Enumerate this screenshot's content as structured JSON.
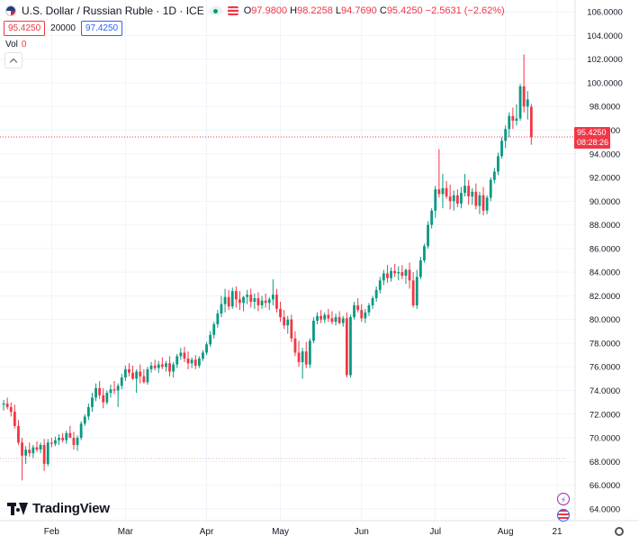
{
  "header": {
    "title": "U.S. Dollar / Russian Ruble · 1D · ICE",
    "ohlc": {
      "o_label": "O",
      "o": "97.9800",
      "h_label": "H",
      "h": "98.2258",
      "l_label": "L",
      "l": "94.7690",
      "c_label": "C",
      "c": "95.4250",
      "change": "−2.5631 (−2.62%)"
    },
    "sell_price": "95.4250",
    "quantity": "20000",
    "buy_price": "97.4250",
    "vol_label": "Vol",
    "vol_value": "0"
  },
  "price_tag": {
    "price": "95.4250",
    "countdown": "08:28:26"
  },
  "brand": "TradingView",
  "colors": {
    "up": "#089981",
    "down": "#f23645",
    "grid": "#f0f3fa",
    "axis_text": "#131722"
  },
  "chart_data": {
    "type": "candlestick",
    "title": "U.S. Dollar / Russian Ruble",
    "y_axis": {
      "min": 63.0,
      "max": 107.0,
      "ticks": [
        "64.0000",
        "66.0000",
        "68.0000",
        "70.0000",
        "72.0000",
        "74.0000",
        "76.0000",
        "78.0000",
        "80.0000",
        "82.0000",
        "84.0000",
        "86.0000",
        "88.0000",
        "90.0000",
        "92.0000",
        "94.0000",
        "96.0000",
        "98.0000",
        "100.0000",
        "102.0000",
        "104.0000",
        "106.0000"
      ]
    },
    "x_axis": {
      "labels": [
        {
          "label": "Feb",
          "index": 13
        },
        {
          "label": "Mar",
          "index": 33
        },
        {
          "label": "Apr",
          "index": 55
        },
        {
          "label": "May",
          "index": 75
        },
        {
          "label": "Jun",
          "index": 97
        },
        {
          "label": "Jul",
          "index": 117
        },
        {
          "label": "Aug",
          "index": 136
        },
        {
          "label": "21",
          "index": 150
        }
      ],
      "total_slots": 152
    },
    "current_price": 95.425,
    "reference_line": 68.25,
    "candles": [
      [
        72.8,
        73.2,
        72.3,
        72.9
      ],
      [
        72.9,
        73.4,
        72.4,
        72.6
      ],
      [
        72.6,
        73.0,
        71.8,
        72.2
      ],
      [
        72.2,
        72.8,
        70.8,
        71.0
      ],
      [
        71.0,
        71.5,
        69.4,
        69.6
      ],
      [
        69.6,
        70.0,
        66.4,
        68.5
      ],
      [
        68.5,
        69.3,
        67.8,
        69.0
      ],
      [
        69.0,
        69.6,
        68.4,
        68.7
      ],
      [
        68.7,
        69.4,
        68.3,
        69.2
      ],
      [
        69.2,
        69.7,
        68.8,
        69.0
      ],
      [
        69.0,
        69.6,
        68.7,
        69.4
      ],
      [
        69.4,
        69.9,
        67.2,
        67.8
      ],
      [
        67.8,
        69.9,
        67.6,
        69.6
      ],
      [
        69.6,
        70.0,
        69.2,
        69.5
      ],
      [
        69.5,
        70.1,
        69.3,
        69.8
      ],
      [
        69.8,
        70.3,
        69.4,
        70.0
      ],
      [
        70.0,
        70.4,
        69.6,
        69.8
      ],
      [
        69.8,
        70.6,
        69.5,
        70.4
      ],
      [
        70.4,
        71.0,
        70.1,
        70.0
      ],
      [
        70.0,
        70.5,
        69.0,
        69.4
      ],
      [
        69.4,
        70.2,
        68.9,
        70.0
      ],
      [
        70.0,
        71.4,
        69.8,
        71.2
      ],
      [
        71.2,
        72.0,
        71.0,
        71.8
      ],
      [
        71.8,
        72.9,
        71.5,
        72.6
      ],
      [
        72.6,
        73.8,
        72.2,
        73.4
      ],
      [
        73.4,
        74.6,
        73.1,
        74.2
      ],
      [
        74.2,
        74.8,
        73.3,
        73.6
      ],
      [
        73.6,
        74.2,
        72.5,
        73.0
      ],
      [
        73.0,
        74.0,
        72.8,
        73.8
      ],
      [
        73.8,
        74.5,
        73.4,
        74.1
      ],
      [
        74.1,
        74.8,
        73.7,
        74.0
      ],
      [
        74.0,
        74.6,
        72.6,
        74.4
      ],
      [
        74.4,
        75.4,
        74.1,
        75.1
      ],
      [
        75.1,
        76.1,
        74.8,
        75.8
      ],
      [
        75.8,
        76.3,
        75.2,
        75.5
      ],
      [
        75.5,
        76.1,
        74.9,
        75.0
      ],
      [
        75.0,
        75.8,
        73.8,
        75.6
      ],
      [
        75.6,
        76.2,
        74.6,
        75.2
      ],
      [
        75.2,
        75.8,
        74.6,
        74.7
      ],
      [
        74.7,
        76.0,
        74.5,
        75.8
      ],
      [
        75.8,
        76.4,
        75.5,
        76.1
      ],
      [
        76.1,
        76.6,
        75.7,
        75.9
      ],
      [
        75.9,
        76.5,
        75.5,
        76.2
      ],
      [
        76.2,
        76.8,
        75.8,
        76.0
      ],
      [
        76.0,
        76.5,
        75.6,
        76.3
      ],
      [
        76.3,
        76.9,
        75.2,
        75.6
      ],
      [
        75.6,
        76.4,
        75.1,
        76.2
      ],
      [
        76.2,
        77.1,
        75.9,
        76.9
      ],
      [
        76.9,
        77.6,
        76.6,
        77.2
      ],
      [
        77.2,
        77.7,
        76.4,
        76.7
      ],
      [
        76.7,
        77.3,
        75.8,
        76.3
      ],
      [
        76.3,
        76.8,
        75.9,
        76.6
      ],
      [
        76.6,
        77.0,
        75.8,
        76.1
      ],
      [
        76.1,
        76.9,
        75.9,
        76.7
      ],
      [
        76.7,
        77.4,
        76.5,
        77.2
      ],
      [
        77.2,
        78.1,
        77.0,
        77.9
      ],
      [
        77.9,
        79.0,
        77.7,
        78.7
      ],
      [
        78.7,
        79.8,
        78.4,
        79.6
      ],
      [
        79.6,
        80.8,
        79.3,
        80.5
      ],
      [
        80.5,
        82.0,
        80.2,
        81.3
      ],
      [
        81.3,
        82.6,
        80.6,
        81.9
      ],
      [
        81.9,
        82.5,
        80.8,
        81.1
      ],
      [
        81.1,
        82.7,
        80.9,
        82.4
      ],
      [
        82.4,
        82.8,
        81.0,
        81.7
      ],
      [
        81.7,
        82.4,
        80.8,
        81.4
      ],
      [
        81.4,
        82.0,
        80.7,
        81.9
      ],
      [
        81.9,
        82.5,
        81.3,
        82.1
      ],
      [
        82.1,
        82.6,
        81.0,
        81.5
      ],
      [
        81.5,
        82.2,
        80.9,
        81.8
      ],
      [
        81.8,
        82.3,
        80.7,
        81.2
      ],
      [
        81.2,
        82.0,
        80.9,
        81.6
      ],
      [
        81.6,
        82.2,
        81.0,
        81.4
      ],
      [
        81.4,
        81.9,
        80.8,
        81.7
      ],
      [
        81.7,
        83.4,
        81.2,
        82.1
      ],
      [
        82.1,
        82.6,
        80.6,
        80.9
      ],
      [
        80.9,
        81.5,
        79.8,
        80.2
      ],
      [
        80.2,
        80.8,
        79.2,
        79.5
      ],
      [
        79.5,
        80.3,
        78.8,
        80.0
      ],
      [
        80.0,
        80.4,
        78.1,
        78.4
      ],
      [
        78.4,
        79.0,
        76.9,
        77.2
      ],
      [
        77.2,
        78.2,
        76.0,
        76.4
      ],
      [
        76.4,
        77.6,
        75.0,
        77.3
      ],
      [
        77.3,
        78.1,
        75.9,
        76.2
      ],
      [
        76.2,
        78.4,
        75.9,
        78.2
      ],
      [
        78.2,
        80.2,
        78.0,
        79.9
      ],
      [
        79.9,
        80.6,
        79.6,
        80.3
      ],
      [
        80.3,
        80.8,
        79.7,
        80.0
      ],
      [
        80.0,
        80.6,
        79.7,
        80.4
      ],
      [
        80.4,
        80.9,
        79.8,
        80.1
      ],
      [
        80.1,
        80.7,
        79.6,
        79.8
      ],
      [
        79.8,
        80.5,
        79.5,
        80.2
      ],
      [
        80.2,
        80.7,
        79.6,
        79.7
      ],
      [
        79.7,
        80.3,
        79.4,
        80.1
      ],
      [
        80.1,
        80.6,
        75.1,
        75.3
      ],
      [
        75.3,
        80.4,
        75.1,
        80.2
      ],
      [
        80.2,
        81.5,
        80.0,
        81.2
      ],
      [
        81.2,
        81.8,
        80.6,
        80.8
      ],
      [
        80.8,
        81.3,
        79.8,
        80.1
      ],
      [
        80.1,
        80.9,
        79.7,
        80.6
      ],
      [
        80.6,
        81.4,
        80.3,
        81.2
      ],
      [
        81.2,
        82.0,
        80.9,
        81.8
      ],
      [
        81.8,
        82.8,
        81.5,
        82.5
      ],
      [
        82.5,
        83.6,
        82.2,
        83.3
      ],
      [
        83.3,
        84.2,
        82.9,
        83.9
      ],
      [
        83.9,
        84.6,
        83.1,
        83.5
      ],
      [
        83.5,
        84.4,
        83.2,
        84.1
      ],
      [
        84.1,
        84.7,
        83.6,
        83.9
      ],
      [
        83.9,
        84.5,
        83.3,
        84.0
      ],
      [
        84.0,
        84.6,
        83.4,
        83.7
      ],
      [
        83.7,
        84.3,
        83.0,
        84.2
      ],
      [
        84.2,
        84.8,
        82.6,
        83.3
      ],
      [
        83.3,
        84.0,
        81.0,
        81.2
      ],
      [
        81.2,
        84.2,
        80.9,
        83.6
      ],
      [
        83.6,
        85.3,
        83.4,
        85.0
      ],
      [
        85.0,
        86.4,
        84.8,
        86.2
      ],
      [
        86.2,
        88.3,
        86.0,
        88.0
      ],
      [
        88.0,
        89.4,
        87.7,
        89.2
      ],
      [
        89.2,
        91.3,
        88.6,
        91.0
      ],
      [
        91.0,
        94.4,
        90.3,
        90.6
      ],
      [
        90.6,
        92.3,
        89.4,
        91.1
      ],
      [
        91.1,
        91.7,
        90.2,
        90.4
      ],
      [
        90.4,
        91.4,
        89.3,
        90.0
      ],
      [
        90.0,
        90.9,
        89.2,
        90.5
      ],
      [
        90.5,
        91.0,
        89.5,
        89.8
      ],
      [
        89.8,
        91.2,
        89.4,
        90.7
      ],
      [
        90.7,
        92.3,
        90.4,
        91.3
      ],
      [
        91.3,
        91.8,
        89.7,
        90.4
      ],
      [
        90.4,
        91.1,
        89.7,
        90.8
      ],
      [
        90.8,
        91.5,
        89.3,
        89.6
      ],
      [
        89.6,
        90.8,
        88.9,
        90.5
      ],
      [
        90.5,
        91.2,
        88.8,
        89.2
      ],
      [
        89.2,
        90.5,
        88.9,
        90.3
      ],
      [
        90.3,
        92.0,
        90.0,
        91.8
      ],
      [
        91.8,
        92.8,
        91.5,
        92.5
      ],
      [
        92.5,
        94.1,
        92.2,
        93.8
      ],
      [
        93.8,
        95.4,
        93.6,
        95.1
      ],
      [
        95.1,
        96.4,
        94.5,
        96.1
      ],
      [
        96.1,
        97.5,
        95.4,
        97.2
      ],
      [
        97.2,
        97.9,
        96.1,
        96.8
      ],
      [
        96.8,
        98.2,
        96.4,
        97.0
      ],
      [
        97.0,
        99.9,
        96.8,
        99.7
      ],
      [
        99.7,
        102.4,
        97.5,
        98.0
      ],
      [
        98.0,
        99.3,
        96.9,
        98.6
      ],
      [
        97.98,
        98.2258,
        94.769,
        95.425
      ]
    ]
  }
}
